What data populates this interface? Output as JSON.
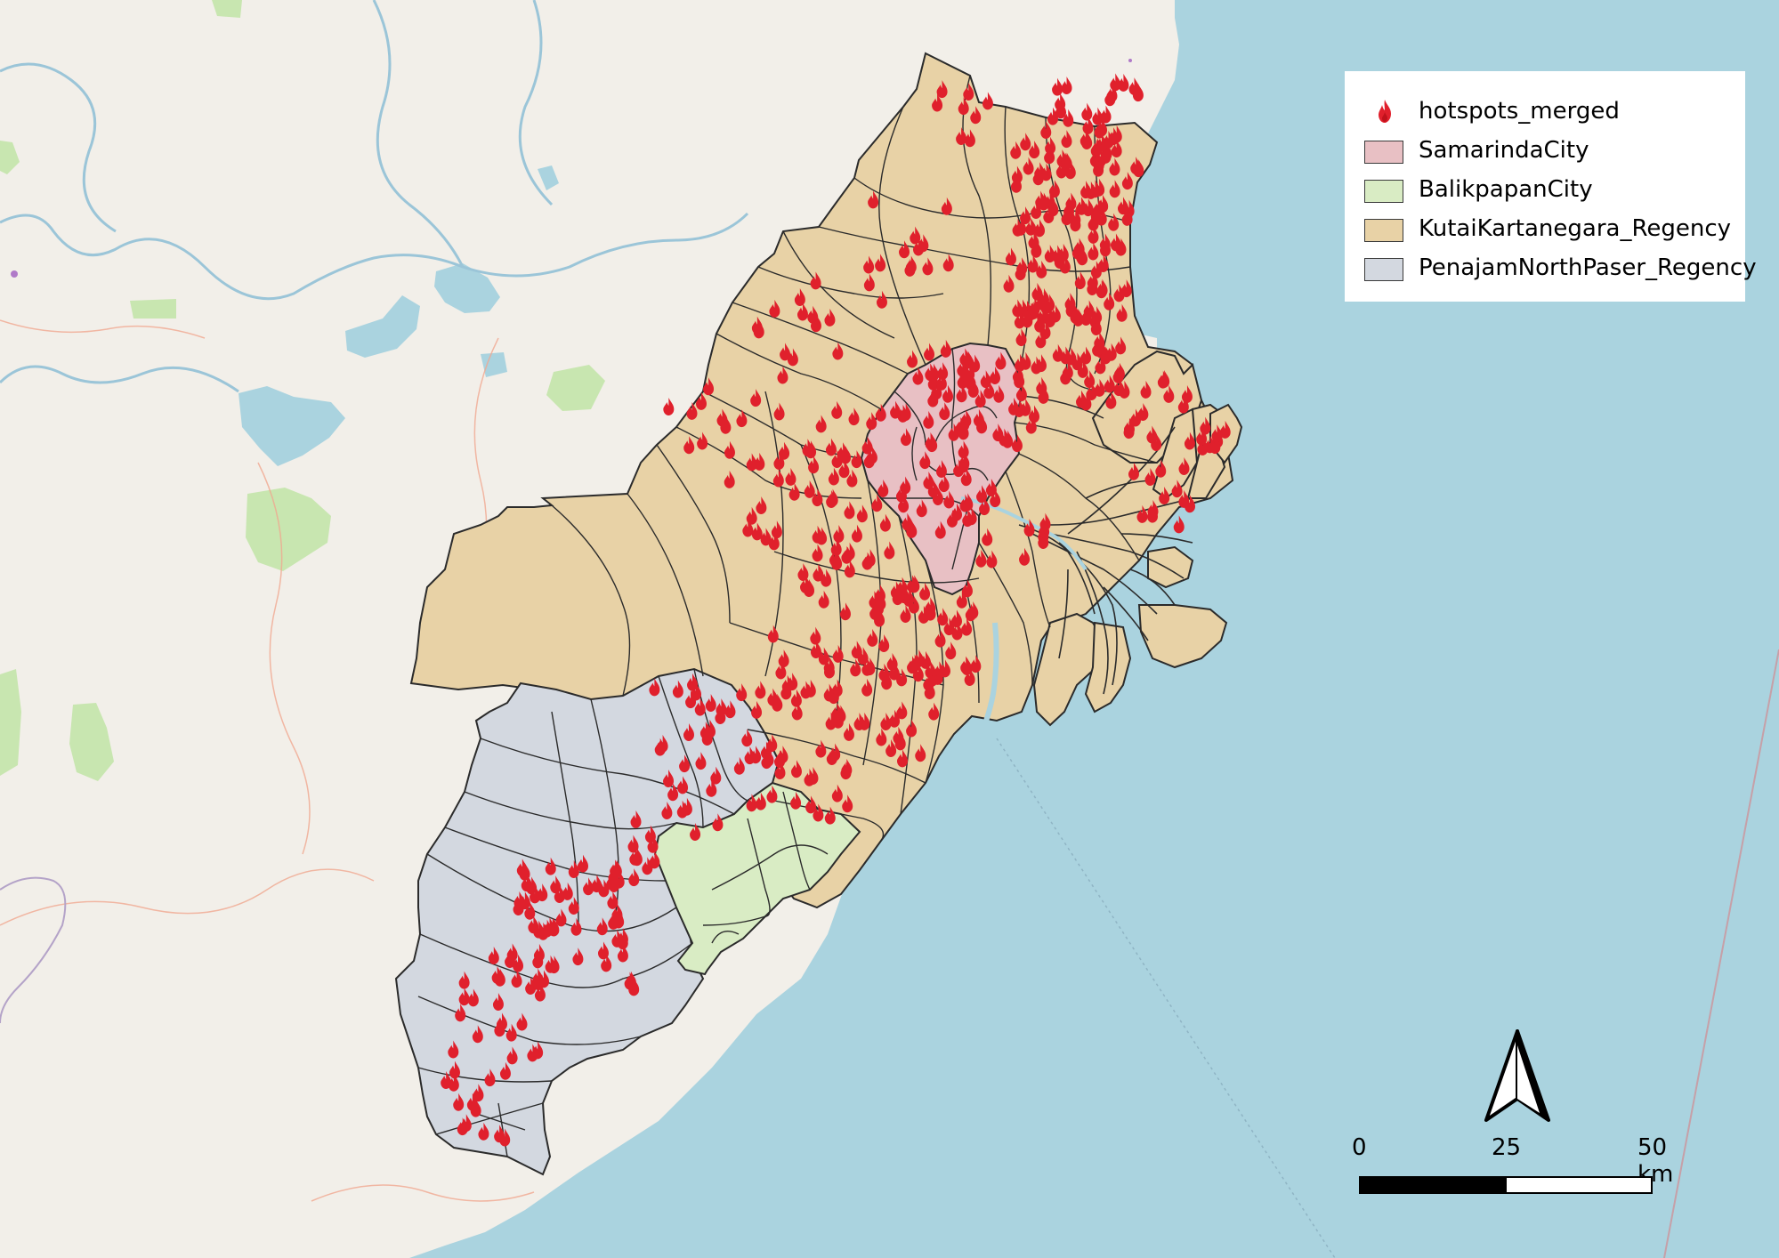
{
  "colors": {
    "land": "#f2efe9",
    "sea": "#aad3df",
    "samarinda": "#e8c0c4",
    "balikpapan": "#d9ecc4",
    "kutai": "#e8d2a6",
    "penajam": "#d3d8e0",
    "hotspot": "#e0202c",
    "boundary": "#2b2b2b",
    "river": "#9bc5d8",
    "park": "#c8e6b0"
  },
  "legend": {
    "items": [
      {
        "label": "hotspots_merged",
        "kind": "icon",
        "icon": "fire-icon",
        "color": "#e0202c"
      },
      {
        "label": "SamarindaCity",
        "kind": "swatch",
        "color": "#e8c0c4"
      },
      {
        "label": "BalikpapanCity",
        "kind": "swatch",
        "color": "#d9ecc4"
      },
      {
        "label": "KutaiKartanegara_Regency",
        "kind": "swatch",
        "color": "#e8d2a6"
      },
      {
        "label": "PenajamNorthPaser_Regency",
        "kind": "swatch",
        "color": "#d3d8e0"
      }
    ]
  },
  "north_arrow": {
    "icon": "north-arrow-icon"
  },
  "scale_bar": {
    "label_0": "0",
    "label_mid": "25",
    "label_end": "50 km"
  }
}
